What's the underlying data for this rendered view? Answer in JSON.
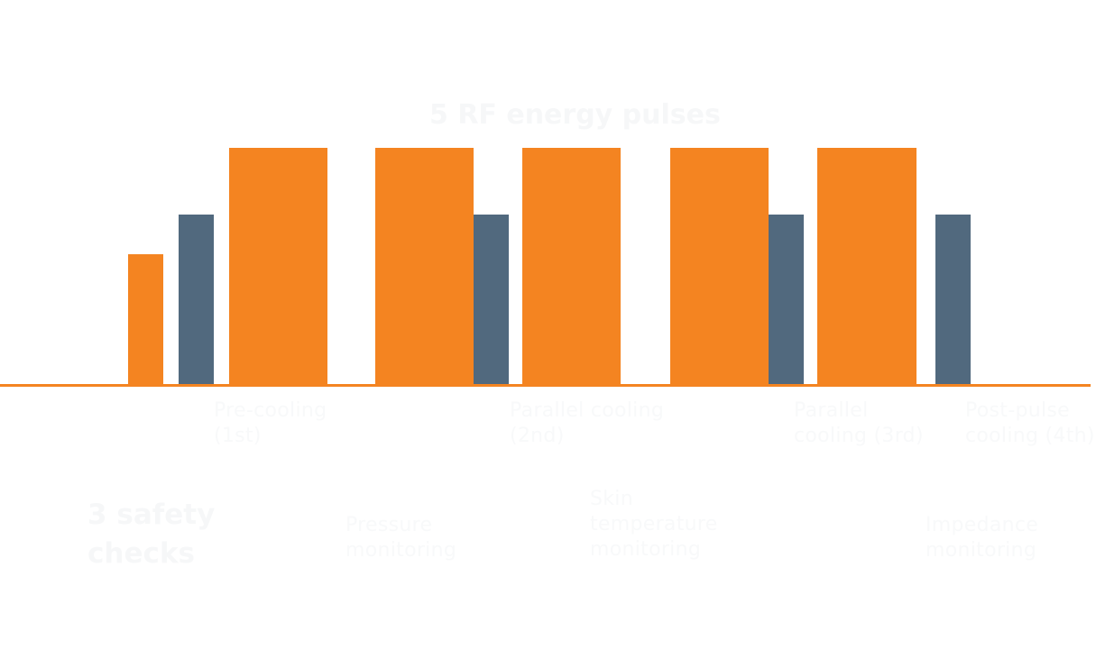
{
  "title": "5 RF energy pulses",
  "colors": {
    "pulse": "#f48421",
    "cooling": "#51697e",
    "baseline": "#f48421",
    "text": "#f8f9fa"
  },
  "sequence": [
    {
      "kind": "pulse",
      "level": 0.55
    },
    {
      "kind": "cooling",
      "level": 0.72
    },
    {
      "kind": "pulse",
      "level": 1.0
    },
    {
      "kind": "pulse",
      "level": 1.0
    },
    {
      "kind": "cooling",
      "level": 0.72
    },
    {
      "kind": "pulse",
      "level": 1.0
    },
    {
      "kind": "pulse",
      "level": 1.0
    },
    {
      "kind": "cooling",
      "level": 0.72
    },
    {
      "kind": "pulse",
      "level": 1.0
    },
    {
      "kind": "cooling",
      "level": 0.72
    }
  ],
  "cooling_labels": [
    "Pre-cooling\n(1st)",
    "Parallel cooling\n(2nd)",
    "Parallel\ncooling (3rd)",
    "Post-pulse\ncooling (4th)"
  ],
  "safety": {
    "heading": "3 safety\nchecks",
    "checks": [
      "Pressure\nmonitoring",
      "Skin\ntemperature\nmonitoring",
      "Impedance\nmonitoring"
    ]
  }
}
